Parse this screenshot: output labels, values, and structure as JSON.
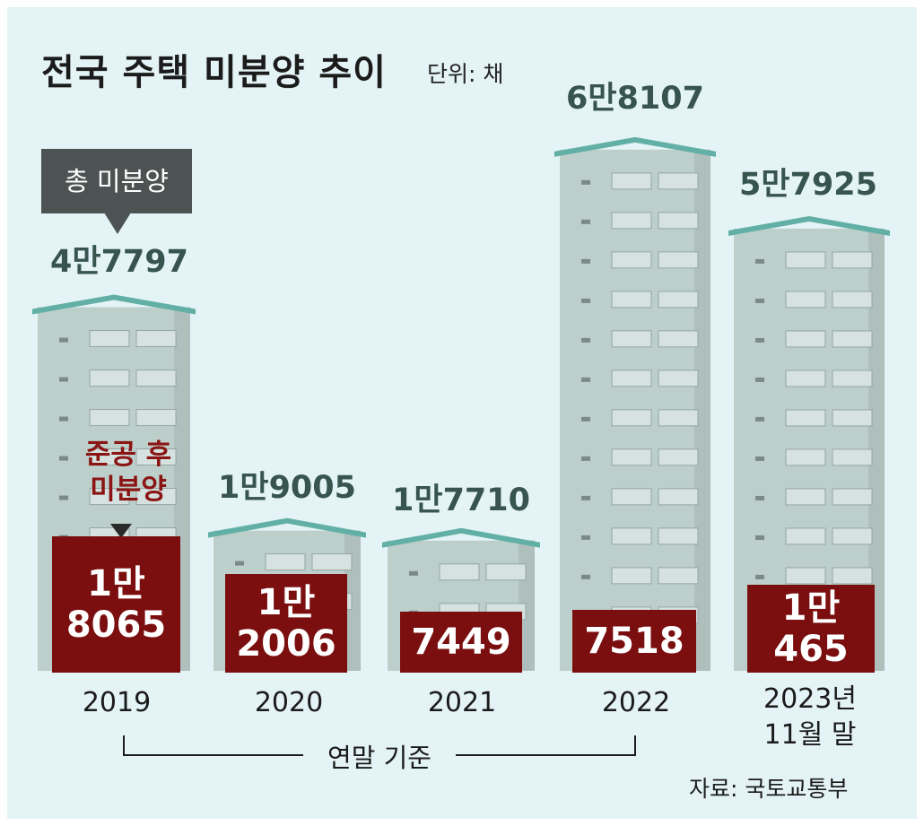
{
  "chart_data": {
    "type": "bar",
    "title": "전국 주택 미분양 추이",
    "unit_label": "단위: 채",
    "categories": [
      "2019",
      "2020",
      "2021",
      "2022",
      "2023년\n11월 말"
    ],
    "series": [
      {
        "name": "총 미분양",
        "values": [
          47797,
          19005,
          17710,
          68107,
          57925
        ],
        "labels": [
          "4만7797",
          "1만9005",
          "1만7710",
          "6만8107",
          "5만7925"
        ]
      },
      {
        "name": "준공 후 미분양",
        "values": [
          18065,
          12006,
          7449,
          7518,
          10465
        ],
        "labels": [
          "1만\n8065",
          "1만\n2006",
          "7449",
          "7518",
          "1만465"
        ]
      }
    ],
    "legend": {
      "total_callout": "총 미분양",
      "completed_callout": "준공 후\n미분양"
    },
    "basis_note": "연말 기준",
    "source": "자료: 국토교통부"
  },
  "colors": {
    "background": "#e4f3f6",
    "building": "#bccfcb",
    "roof": "#62b0a5",
    "highlight": "#8b1414",
    "box": "#7b0f0f"
  }
}
